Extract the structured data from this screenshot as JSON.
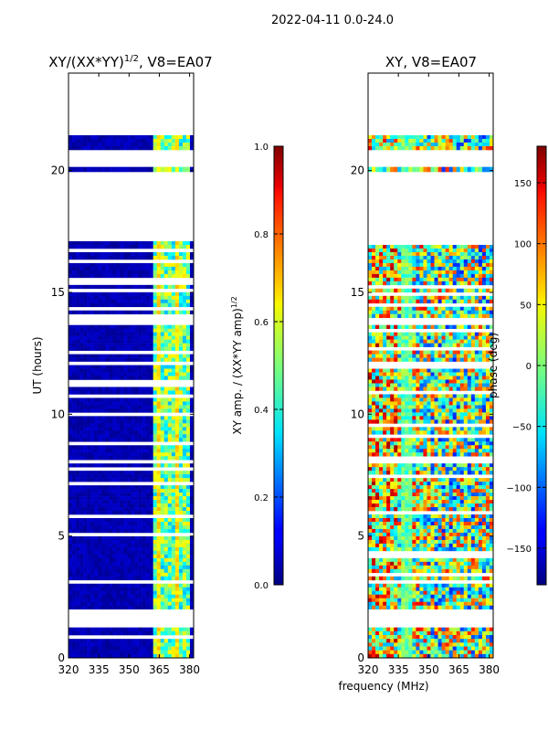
{
  "suptitle": "2022-04-11 0.0-24.0",
  "shared_xlabel": "frequency (MHz)",
  "chart_data": [
    {
      "type": "heatmap",
      "title_main": "XY/(XX*YY)",
      "title_exp": "1/2",
      "title_tail": ", V8=EA07",
      "ylabel": "UT (hours)",
      "xlim": [
        320,
        382
      ],
      "ylim": [
        0,
        24
      ],
      "xticks": [
        320,
        335,
        350,
        365,
        380
      ],
      "yticks": [
        0,
        5,
        10,
        15,
        20
      ],
      "data_blocks_hours": [
        [
          0.0,
          1.25
        ],
        [
          2.0,
          17.1
        ],
        [
          19.95,
          20.15
        ],
        [
          20.85,
          21.45
        ]
      ],
      "colorbar": {
        "label_main": "XY amp. / (XX*YY amp)",
        "label_exp": "1/2",
        "range": [
          0.0,
          1.0
        ],
        "ticks": [
          "0.0",
          "0.2",
          "0.4",
          "0.6",
          "0.8",
          "1.0"
        ]
      },
      "colormap": "jet"
    },
    {
      "type": "heatmap",
      "title": "XY, V8=EA07",
      "xlim": [
        320,
        382
      ],
      "ylim": [
        0,
        24
      ],
      "xticks": [
        320,
        335,
        350,
        365,
        380
      ],
      "yticks": [
        0,
        5,
        10,
        15,
        20
      ],
      "data_blocks_hours": [
        [
          0.0,
          1.25
        ],
        [
          2.0,
          17.1
        ],
        [
          19.95,
          20.15
        ],
        [
          20.85,
          21.45
        ]
      ],
      "colorbar": {
        "label": "phase (deg)",
        "range": [
          -180,
          180
        ],
        "ticks": [
          -150,
          -100,
          -50,
          0,
          50,
          100,
          150
        ]
      },
      "colormap": "jet"
    }
  ]
}
